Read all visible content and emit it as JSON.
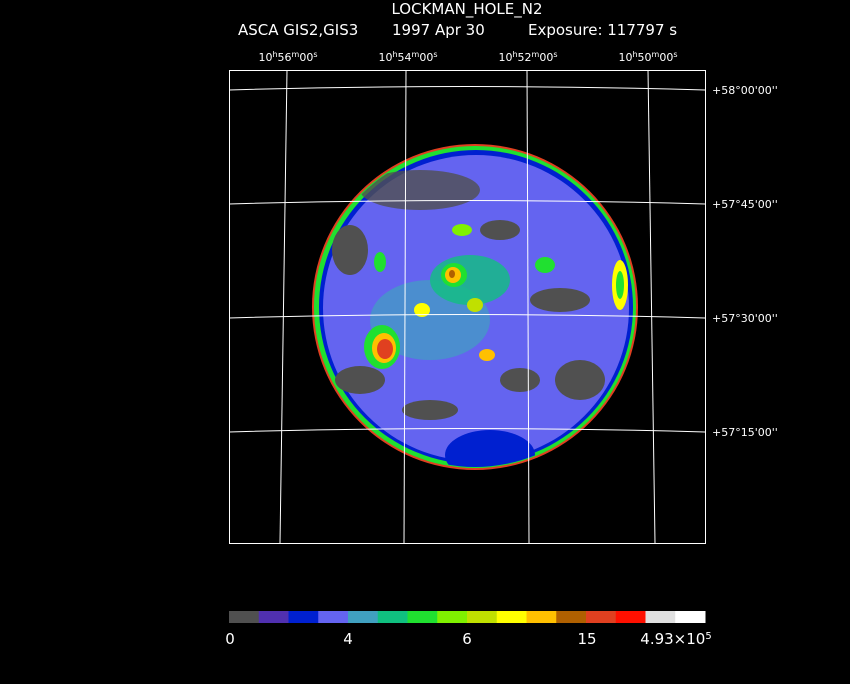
{
  "header": {
    "title": "LOCKMAN_HOLE_N2",
    "instrument": "ASCA GIS2,GIS3",
    "date": "1997 Apr 30",
    "exposure": "Exposure: 117797 s"
  },
  "ra_labels": [
    [
      "10",
      "h",
      "56",
      "m",
      "00",
      "s"
    ],
    [
      "10",
      "h",
      "54",
      "m",
      "00",
      "s"
    ],
    [
      "10",
      "h",
      "52",
      "m",
      "00",
      "s"
    ],
    [
      "10",
      "h",
      "50",
      "m",
      "00",
      "s"
    ]
  ],
  "dec_labels": [
    "+58°00'00''",
    "+57°45'00''",
    "+57°30'00''",
    "+57°15'00''"
  ],
  "colorbar": {
    "colors": [
      "#505050",
      "#5030b0",
      "#0020d0",
      "#6464f0",
      "#40a0c0",
      "#10c080",
      "#20e030",
      "#80f000",
      "#c0e000",
      "#ffff00",
      "#ffc000",
      "#b06000",
      "#e04020",
      "#ff1000",
      "#e0e0e0",
      "#ffffff"
    ],
    "labels": [
      [
        "0"
      ],
      [
        "4"
      ],
      [
        "6"
      ],
      [
        "15"
      ],
      [
        "4.93×10",
        "5"
      ]
    ]
  }
}
